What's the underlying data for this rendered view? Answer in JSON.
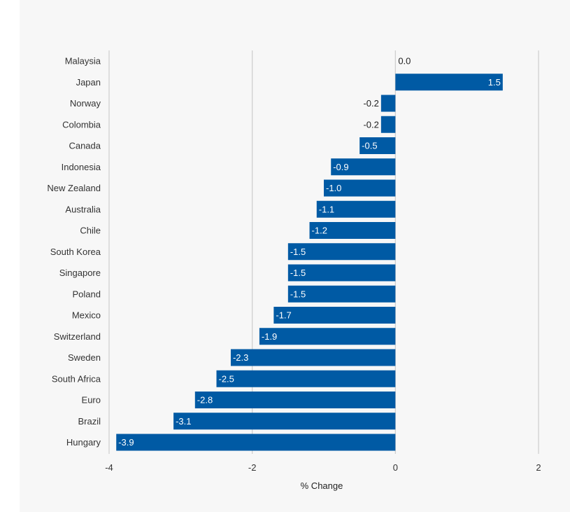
{
  "chart_data": {
    "type": "bar",
    "orientation": "horizontal",
    "categories": [
      "Malaysia",
      "Japan",
      "Norway",
      "Colombia",
      "Canada",
      "Indonesia",
      "New Zealand",
      "Australia",
      "Chile",
      "South Korea",
      "Singapore",
      "Poland",
      "Mexico",
      "Switzerland",
      "Sweden",
      "South Africa",
      "Euro",
      "Brazil",
      "Hungary"
    ],
    "values": [
      0.0,
      1.5,
      -0.2,
      -0.2,
      -0.5,
      -0.9,
      -1.0,
      -1.1,
      -1.2,
      -1.5,
      -1.5,
      -1.5,
      -1.7,
      -1.9,
      -2.3,
      -2.5,
      -2.8,
      -3.1,
      -3.9
    ],
    "labels": [
      "0.0",
      "1.5",
      "-0.2",
      "-0.2",
      "-0.5",
      "-0.9",
      "-1.0",
      "-1.1",
      "-1.2",
      "-1.5",
      "-1.5",
      "-1.5",
      "-1.7",
      "-1.9",
      "-2.3",
      "-2.5",
      "-2.8",
      "-3.1",
      "-3.9"
    ],
    "xlabel": "% Change",
    "ylabel": "",
    "title": "",
    "xlim": [
      -4,
      2
    ],
    "xticks": [
      -4,
      -2,
      0,
      2
    ],
    "xtick_labels": [
      "-4",
      "-2",
      "0",
      "2"
    ],
    "grid": true,
    "bar_color": "#005aa4",
    "grid_color": "#d0d0d0",
    "panel_color": "#f7f7f7"
  }
}
